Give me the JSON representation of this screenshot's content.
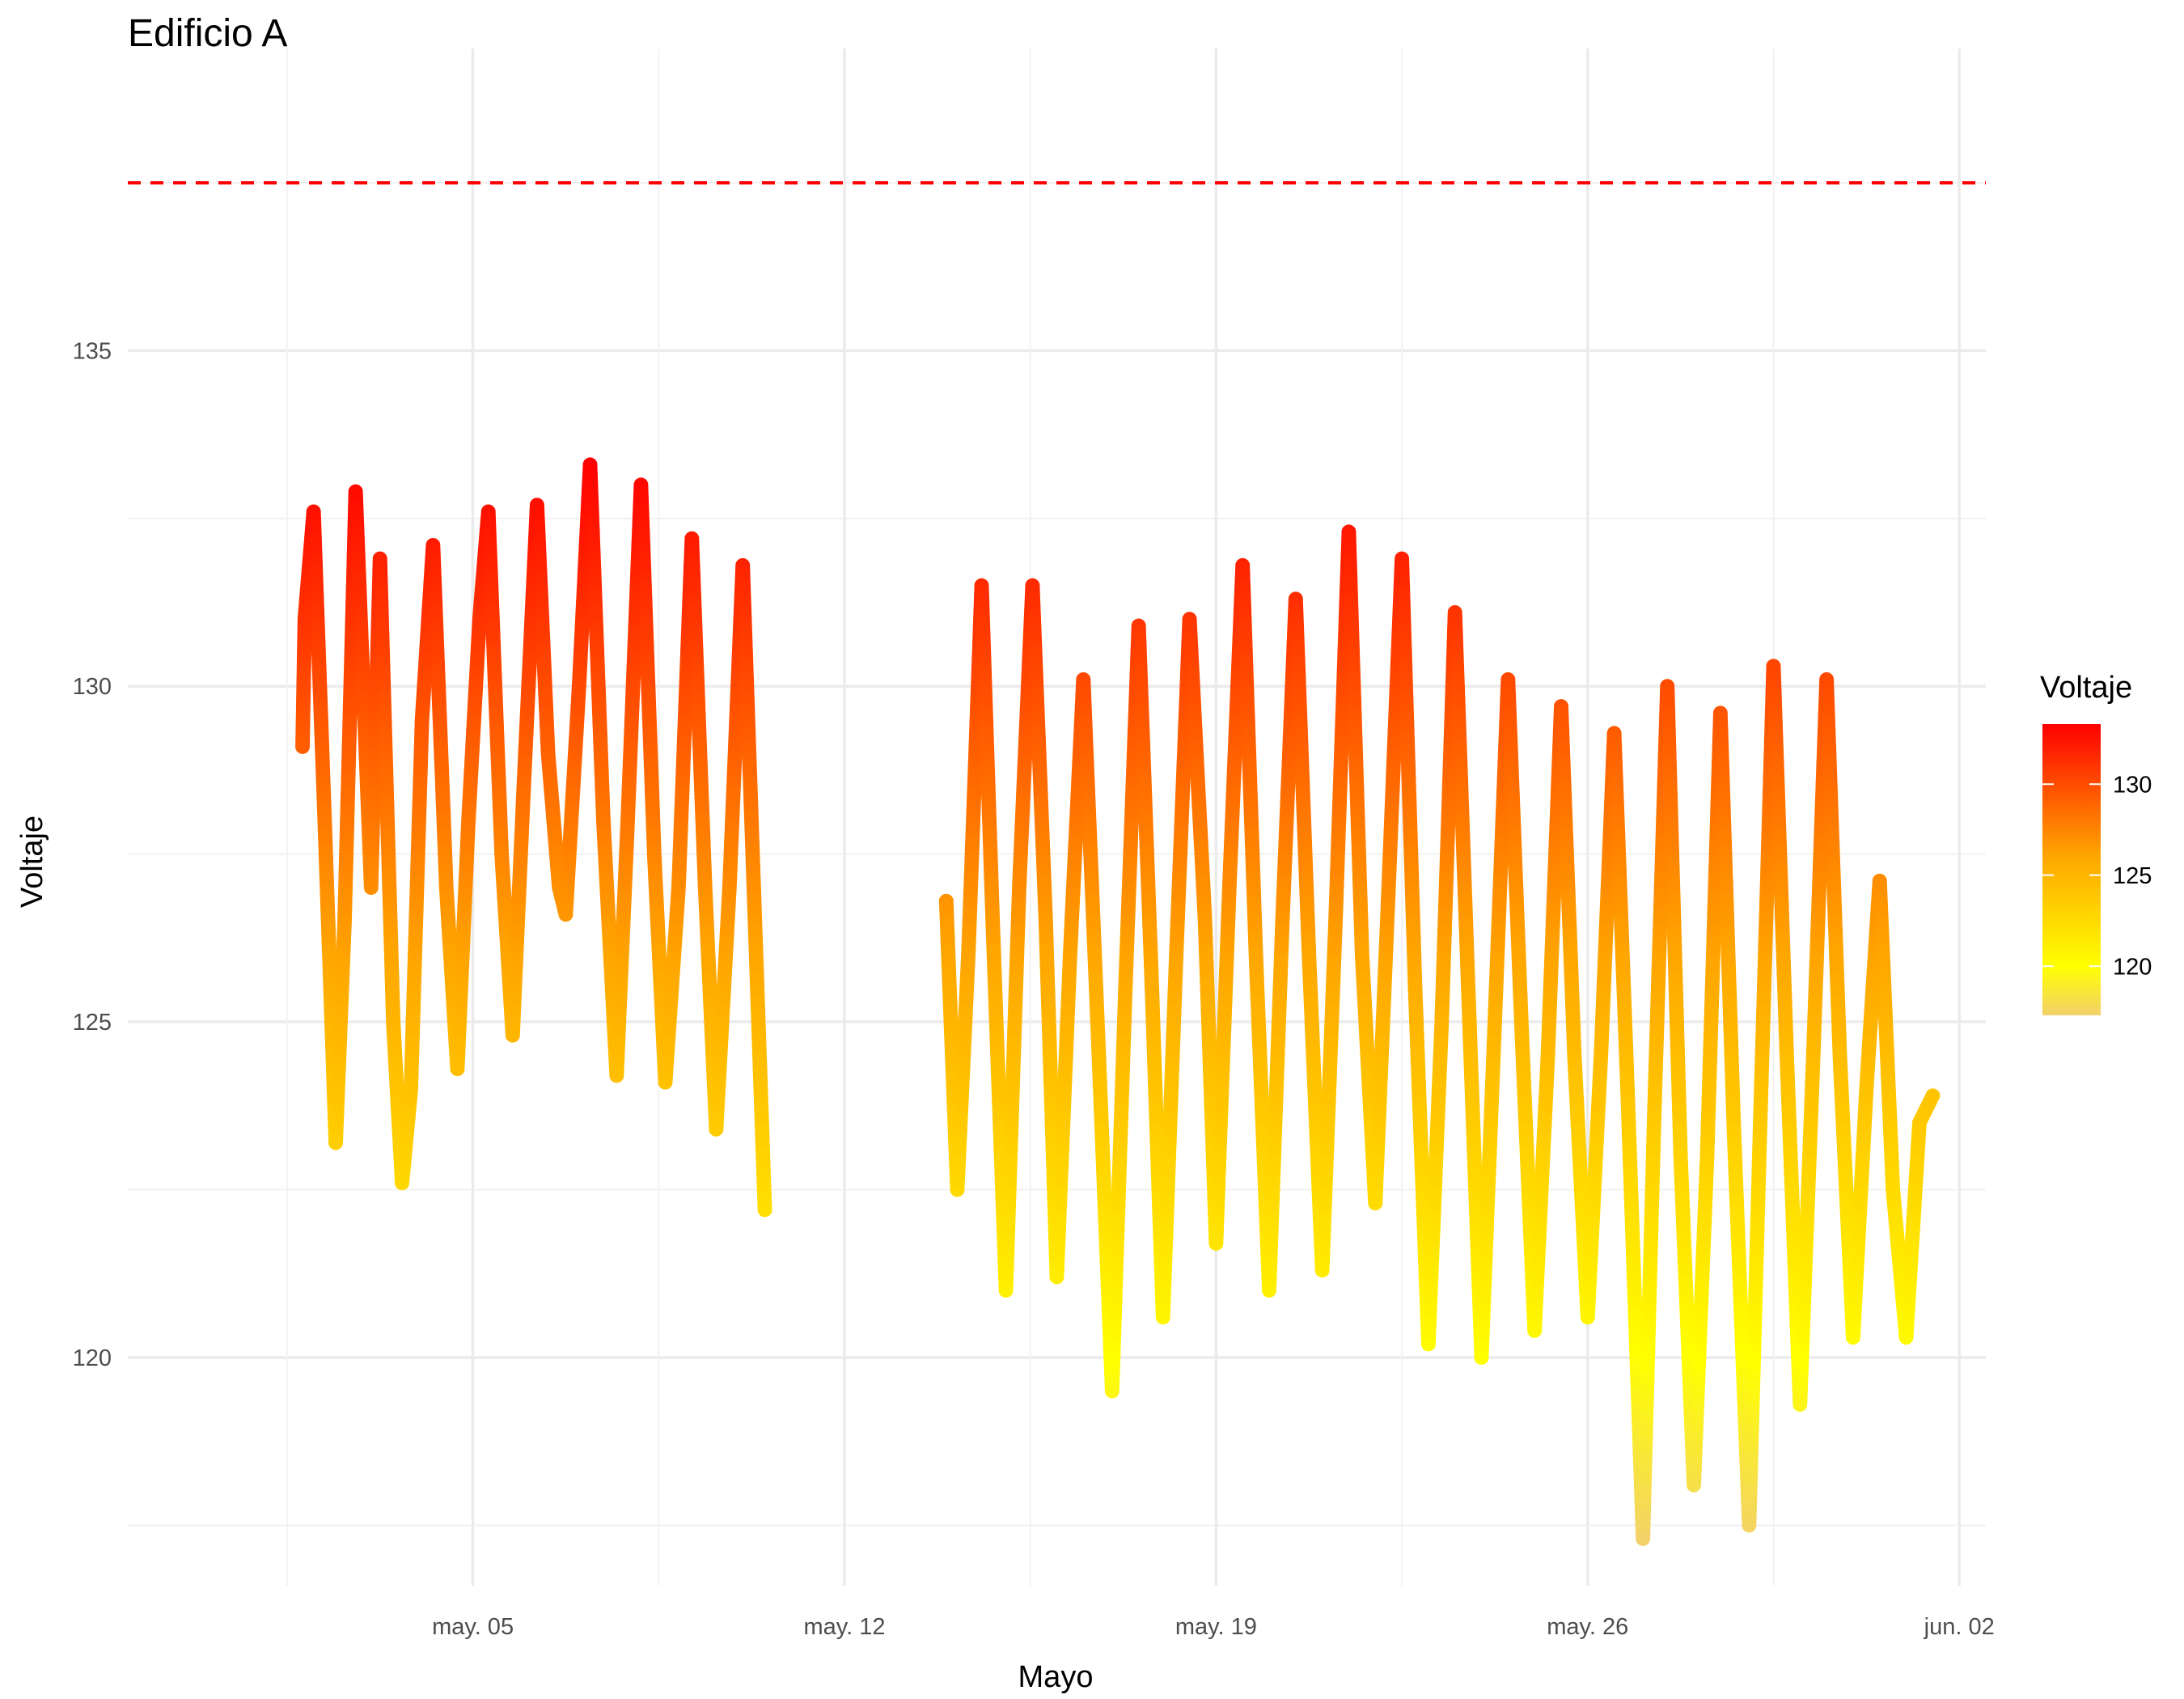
{
  "chart_data": {
    "type": "scatter",
    "title": "Edificio A",
    "xlabel": "Mayo",
    "ylabel": "Voltaje",
    "x_range": [
      "2025-04-28T12:00",
      "2025-06-02T12:00"
    ],
    "ylim": [
      116.6,
      139.5
    ],
    "x_ticks": [
      {
        "date": "2025-05-05",
        "label": "may. 05"
      },
      {
        "date": "2025-05-12",
        "label": "may. 12"
      },
      {
        "date": "2025-05-19",
        "label": "may. 19"
      },
      {
        "date": "2025-05-26",
        "label": "may. 26"
      },
      {
        "date": "2025-06-02",
        "label": "jun. 02"
      }
    ],
    "y_ticks": [
      120,
      125,
      130,
      135
    ],
    "reference_line": {
      "y": 137.5,
      "color": "#ff0000",
      "style": "dashed"
    },
    "grid": true,
    "legend": {
      "title": "Voltaje",
      "position": "right",
      "type": "colorbar",
      "range": [
        117.3,
        133.3
      ],
      "labels": [
        120,
        125,
        130
      ],
      "colors": [
        "#f2d16b",
        "#ffff00",
        "#ffa500",
        "#ff0000"
      ]
    },
    "series": [
      {
        "points": [
          [
            "2025-05-01T19:00",
            129.1
          ],
          [
            "2025-05-01T20:00",
            131.0
          ],
          [
            "2025-05-02T00:00",
            132.6
          ],
          [
            "2025-05-02T05:00",
            128.0
          ],
          [
            "2025-05-02T10:00",
            123.2
          ],
          [
            "2025-05-02T14:00",
            126.5
          ],
          [
            "2025-05-02T19:00",
            132.9
          ],
          [
            "2025-05-03T02:00",
            127.0
          ],
          [
            "2025-05-03T06:00",
            131.9
          ],
          [
            "2025-05-03T12:00",
            125.0
          ],
          [
            "2025-05-03T16:00",
            122.6
          ],
          [
            "2025-05-03T20:00",
            124.0
          ],
          [
            "2025-05-04T01:00",
            129.5
          ],
          [
            "2025-05-04T06:00",
            132.1
          ],
          [
            "2025-05-04T12:00",
            127.0
          ],
          [
            "2025-05-04T17:00",
            124.3
          ],
          [
            "2025-05-04T22:00",
            128.0
          ],
          [
            "2025-05-05T03:00",
            131.0
          ],
          [
            "2025-05-05T07:00",
            132.6
          ],
          [
            "2025-05-05T13:00",
            127.5
          ],
          [
            "2025-05-05T18:00",
            124.8
          ],
          [
            "2025-05-05T23:00",
            128.5
          ],
          [
            "2025-05-06T05:00",
            132.7
          ],
          [
            "2025-05-06T10:00",
            129.0
          ],
          [
            "2025-05-06T15:00",
            127.0
          ],
          [
            "2025-05-06T18:00",
            126.6
          ],
          [
            "2025-05-07T00:00",
            130.0
          ],
          [
            "2025-05-07T05:00",
            133.3
          ],
          [
            "2025-05-07T11:00",
            128.0
          ],
          [
            "2025-05-07T17:00",
            124.2
          ],
          [
            "2025-05-07T22:00",
            128.0
          ],
          [
            "2025-05-08T04:00",
            133.0
          ],
          [
            "2025-05-08T10:00",
            127.5
          ],
          [
            "2025-05-08T15:00",
            124.1
          ],
          [
            "2025-05-08T21:00",
            127.0
          ],
          [
            "2025-05-09T03:00",
            132.2
          ],
          [
            "2025-05-09T09:00",
            127.0
          ],
          [
            "2025-05-09T14:00",
            123.4
          ],
          [
            "2025-05-09T20:00",
            127.0
          ],
          [
            "2025-05-10T02:00",
            131.8
          ],
          [
            "2025-05-10T07:00",
            127.0
          ],
          [
            "2025-05-10T12:00",
            122.2
          ]
        ]
      },
      {
        "points": [
          [
            "2025-05-13T22:00",
            126.8
          ],
          [
            "2025-05-14T03:00",
            122.5
          ],
          [
            "2025-05-14T08:00",
            126.0
          ],
          [
            "2025-05-14T14:00",
            131.5
          ],
          [
            "2025-05-14T19:00",
            126.5
          ],
          [
            "2025-05-15T01:00",
            121.0
          ],
          [
            "2025-05-15T07:00",
            127.0
          ],
          [
            "2025-05-15T13:00",
            131.5
          ],
          [
            "2025-05-15T19:00",
            126.5
          ],
          [
            "2025-05-16T00:00",
            121.2
          ],
          [
            "2025-05-16T06:00",
            126.0
          ],
          [
            "2025-05-16T12:00",
            130.1
          ],
          [
            "2025-05-16T19:00",
            124.5
          ],
          [
            "2025-05-17T01:00",
            119.5
          ],
          [
            "2025-05-17T07:00",
            125.5
          ],
          [
            "2025-05-17T13:00",
            130.9
          ],
          [
            "2025-05-17T19:00",
            125.5
          ],
          [
            "2025-05-18T00:00",
            120.6
          ],
          [
            "2025-05-18T06:00",
            126.0
          ],
          [
            "2025-05-18T12:00",
            131.0
          ],
          [
            "2025-05-18T19:00",
            126.5
          ],
          [
            "2025-05-19T00:00",
            121.7
          ],
          [
            "2025-05-19T06:00",
            127.0
          ],
          [
            "2025-05-19T12:00",
            131.8
          ],
          [
            "2025-05-19T18:00",
            126.0
          ],
          [
            "2025-05-20T00:00",
            121.0
          ],
          [
            "2025-05-20T06:00",
            126.5
          ],
          [
            "2025-05-20T12:00",
            131.3
          ],
          [
            "2025-05-20T18:00",
            126.0
          ],
          [
            "2025-05-21T00:00",
            121.3
          ],
          [
            "2025-05-21T06:00",
            126.5
          ],
          [
            "2025-05-21T12:00",
            132.3
          ],
          [
            "2025-05-21T18:00",
            126.0
          ],
          [
            "2025-05-22T00:00",
            122.3
          ],
          [
            "2025-05-22T06:00",
            127.0
          ],
          [
            "2025-05-22T12:00",
            131.9
          ],
          [
            "2025-05-22T18:00",
            125.5
          ],
          [
            "2025-05-23T00:00",
            120.2
          ],
          [
            "2025-05-23T06:00",
            125.0
          ],
          [
            "2025-05-23T12:00",
            131.1
          ],
          [
            "2025-05-23T18:00",
            125.5
          ],
          [
            "2025-05-24T00:00",
            120.0
          ],
          [
            "2025-05-24T06:00",
            125.0
          ],
          [
            "2025-05-24T12:00",
            130.1
          ],
          [
            "2025-05-24T18:00",
            125.0
          ],
          [
            "2025-05-25T00:00",
            120.4
          ],
          [
            "2025-05-25T06:00",
            124.5
          ],
          [
            "2025-05-25T12:00",
            129.7
          ],
          [
            "2025-05-25T18:00",
            124.5
          ],
          [
            "2025-05-26T00:00",
            120.6
          ],
          [
            "2025-05-26T06:00",
            124.5
          ],
          [
            "2025-05-26T12:00",
            129.3
          ],
          [
            "2025-05-26T18:00",
            124.0
          ],
          [
            "2025-05-27T01:00",
            117.3
          ],
          [
            "2025-05-27T06:00",
            123.5
          ],
          [
            "2025-05-27T12:00",
            130.0
          ],
          [
            "2025-05-27T18:00",
            123.0
          ],
          [
            "2025-05-28T00:00",
            118.1
          ],
          [
            "2025-05-28T06:00",
            123.0
          ],
          [
            "2025-05-28T12:00",
            129.6
          ],
          [
            "2025-05-28T18:00",
            123.5
          ],
          [
            "2025-05-29T01:00",
            117.5
          ],
          [
            "2025-05-29T06:00",
            123.5
          ],
          [
            "2025-05-29T12:00",
            130.3
          ],
          [
            "2025-05-29T18:00",
            124.5
          ],
          [
            "2025-05-30T00:00",
            119.3
          ],
          [
            "2025-05-30T06:00",
            124.5
          ],
          [
            "2025-05-30T12:00",
            130.1
          ],
          [
            "2025-05-30T18:00",
            124.5
          ],
          [
            "2025-05-31T00:00",
            120.3
          ],
          [
            "2025-05-31T06:00",
            124.0
          ],
          [
            "2025-05-31T12:00",
            127.1
          ],
          [
            "2025-05-31T18:00",
            122.5
          ],
          [
            "2025-06-01T00:00",
            120.3
          ],
          [
            "2025-06-01T06:00",
            123.5
          ],
          [
            "2025-06-01T12:00",
            123.9
          ]
        ]
      }
    ]
  }
}
